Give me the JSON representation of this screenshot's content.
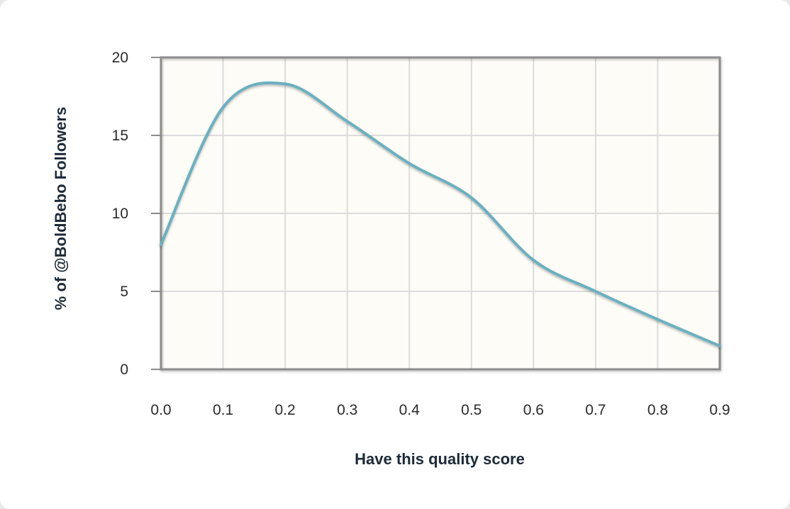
{
  "chart_data": {
    "type": "line",
    "title": "",
    "xlabel": "Have this quality score",
    "ylabel": "% of @BoldBebo Followers",
    "xlim": [
      0.0,
      0.9
    ],
    "ylim": [
      0,
      20
    ],
    "x_ticks": [
      "0.0",
      "0.1",
      "0.2",
      "0.3",
      "0.4",
      "0.5",
      "0.6",
      "0.7",
      "0.8",
      "0.9"
    ],
    "y_ticks": [
      "0",
      "5",
      "10",
      "15",
      "20"
    ],
    "grid": true,
    "legend": "none",
    "series": [
      {
        "x": [
          0.0,
          0.1,
          0.2,
          0.3,
          0.4,
          0.5,
          0.6,
          0.7,
          0.8,
          0.9
        ],
        "values": [
          8.0,
          16.8,
          18.3,
          15.9,
          13.2,
          11.0,
          7.0,
          5.0,
          3.2,
          1.5
        ]
      }
    ],
    "colors": {
      "line": "#6bb0c0",
      "plot_background": "#fdfcf6",
      "grid": "#dcdcdc",
      "axis": "#8c8c8c"
    }
  }
}
